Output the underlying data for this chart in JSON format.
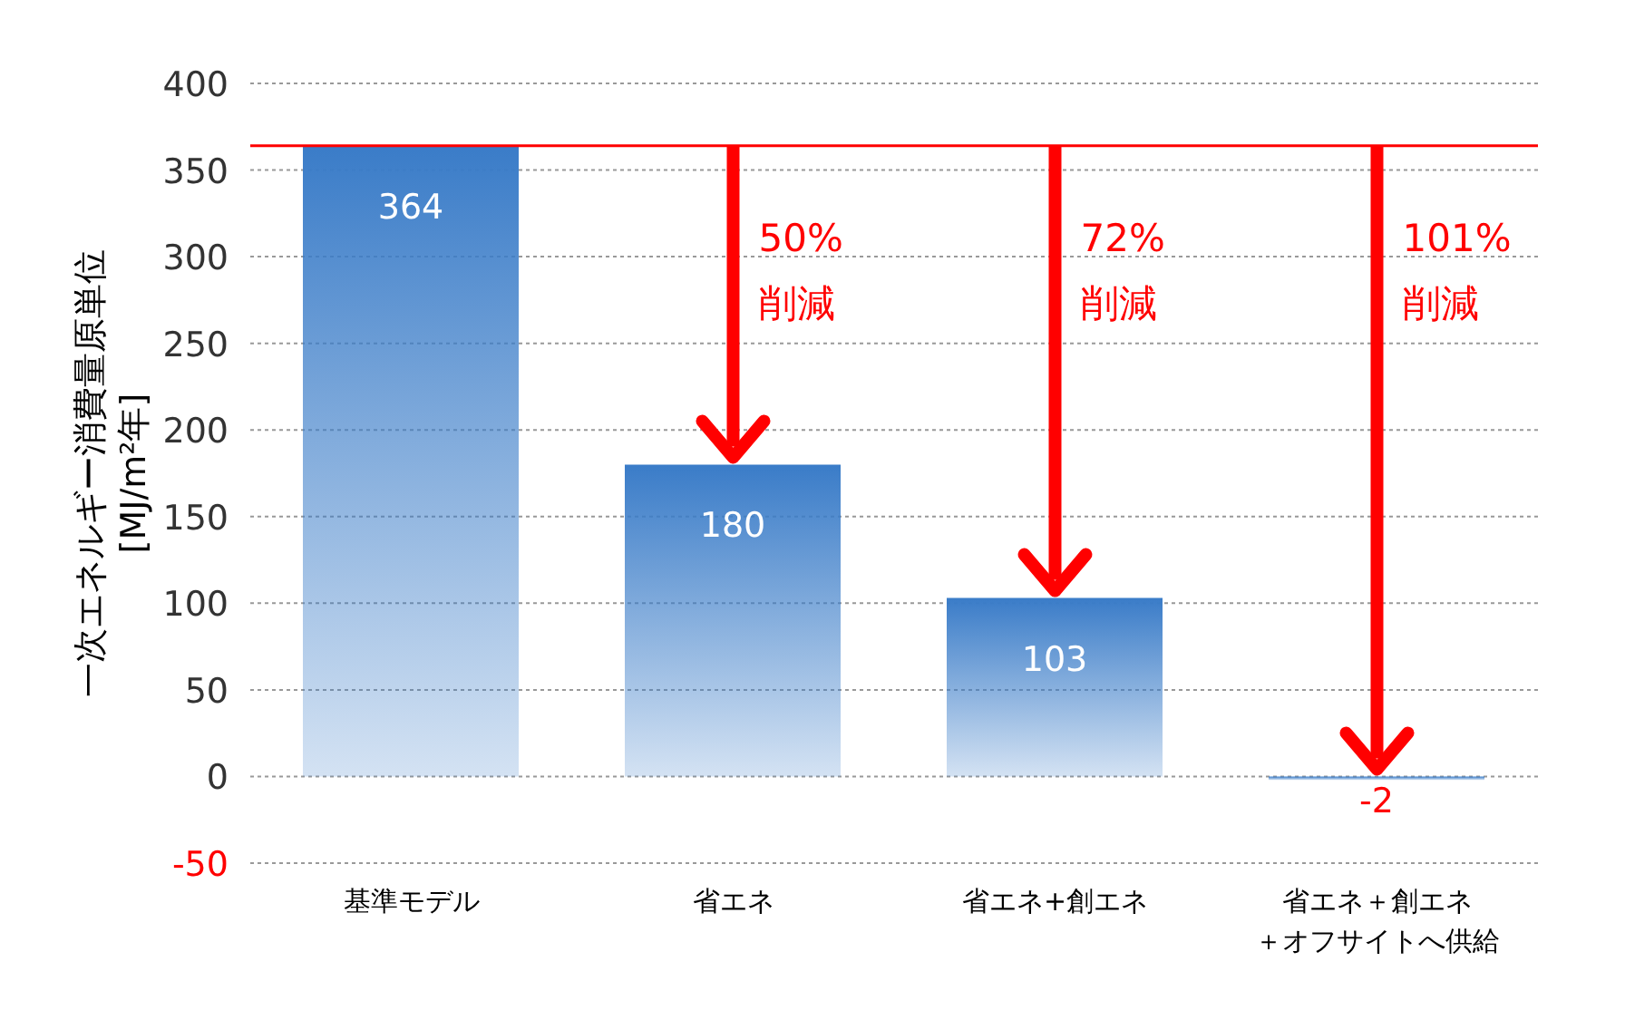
{
  "chart_data": {
    "type": "bar",
    "categories": [
      "基準モデル",
      "省エネ",
      "省エネ+創エネ",
      "省エネ＋創エネ＋オフサイトへ供給"
    ],
    "values": [
      364,
      180,
      103,
      -2
    ],
    "color": "#3a7cc8",
    "data_labels": true,
    "ylabel": "一次エネルギー消費量原単位\n[MJ/m²年]",
    "ylim": [
      -50,
      400
    ],
    "yticks": [
      -50,
      0,
      50,
      100,
      150,
      200,
      250,
      300,
      350,
      400
    ],
    "grid": "y",
    "ref_lines": [
      {
        "axis": "y",
        "value": 364,
        "color": "#ff0000"
      }
    ],
    "annotations": [
      "50%\n削減",
      "72%\n削減",
      "101%\n削減"
    ]
  }
}
